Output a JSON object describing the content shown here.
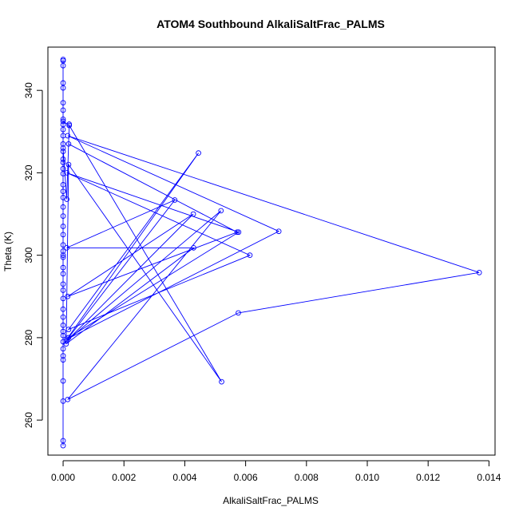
{
  "chart_data": {
    "type": "line",
    "title": "ATOM4 Southbound AlkaliSaltFrac_PALMS",
    "xlabel": "AlkaliSaltFrac_PALMS",
    "ylabel": "Theta (K)",
    "xlim": [
      -0.0005,
      0.0142
    ],
    "ylim": [
      251.5,
      350.5
    ],
    "xticks": [
      0.0,
      0.002,
      0.004,
      0.006,
      0.008,
      0.01,
      0.012,
      0.014
    ],
    "xtick_labels": [
      "0.000",
      "0.002",
      "0.004",
      "0.006",
      "0.008",
      "0.010",
      "0.012",
      "0.014"
    ],
    "yticks": [
      260,
      280,
      300,
      320,
      340
    ],
    "ytick_labels": [
      "260",
      "280",
      "300",
      "320",
      "340"
    ],
    "grid": false,
    "legend": "none",
    "line_color": "#0000ff",
    "marker": "open-circle",
    "series": [
      {
        "x": [
          0,
          0,
          0,
          0,
          0,
          0,
          0,
          0,
          0,
          0,
          0,
          0,
          0,
          0,
          0,
          0,
          0,
          0,
          0,
          0,
          0,
          0,
          0,
          0,
          0,
          0,
          0,
          0,
          0,
          0,
          0,
          0,
          0,
          0,
          0,
          0,
          0,
          0,
          0,
          0,
          0,
          0,
          0,
          0,
          0,
          0,
          0.0002,
          0.00521,
          0.00018,
          0.0001,
          0.00429,
          0.00012,
          0.00367,
          0.00018,
          0.00577,
          0.00012,
          0.00614,
          0.00018,
          0.00445,
          0.00012,
          0.00709,
          0.00015,
          0.01368,
          0.00576,
          0.00015,
          0.00519,
          0.00012,
          0.00428,
          0.00015,
          0.00572,
          0.00018,
          0.0002,
          0.00012,
          0,
          0
        ],
        "y": [
          253.8,
          255.0,
          264.6,
          269.5,
          274.6,
          275.6,
          277.3,
          279.0,
          280.5,
          281.5,
          283.0,
          285.0,
          286.9,
          289.5,
          291.5,
          293.0,
          295.5,
          297.0,
          299.5,
          301.0,
          302.5,
          305.0,
          307.0,
          309.5,
          311.7,
          314.0,
          315.5,
          317.1,
          319.8,
          321.0,
          322.5,
          323.3,
          325.2,
          327.0,
          329.0,
          330.5,
          331.7,
          333.0,
          335.2,
          337.0,
          340.6,
          341.8,
          346.0,
          347.2,
          347.5,
          332.5,
          331.5,
          269.3,
          322.0,
          278.5,
          301.8,
          301.8,
          313.4,
          280.0,
          305.6,
          320.0,
          300.0,
          282.0,
          324.8,
          279.6,
          305.8,
          329.0,
          295.8,
          286.0,
          265.0,
          310.8,
          279.2,
          310.0,
          290.0,
          305.6,
          327.0,
          331.8,
          313.6,
          326.0,
          300.0
        ]
      }
    ]
  }
}
